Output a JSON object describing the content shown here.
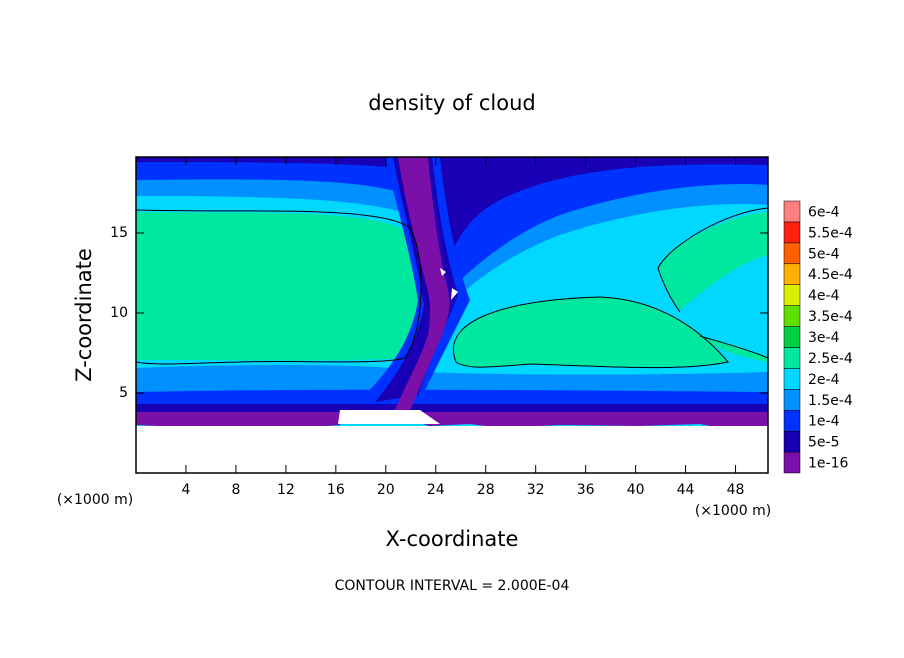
{
  "chart_data": {
    "type": "contour",
    "title": "density of cloud",
    "x_label": "X-coordinate",
    "y_label": "Z-coordinate",
    "x_unit": "(×1000 m)",
    "footer": "CONTOUR INTERVAL = 2.000E-04",
    "xlim": [
      0,
      50.6
    ],
    "ylim": [
      0,
      19.75
    ],
    "xticks": [
      4,
      8,
      12,
      16,
      20,
      24,
      28,
      32,
      36,
      40,
      44,
      48
    ],
    "yticks": [
      5,
      10,
      15
    ],
    "levels": [
      {
        "value": 1e-16,
        "label": "1e-16",
        "color": "#7a10a8"
      },
      {
        "value": 5e-05,
        "label": "5e-5",
        "color": "#1a00b4"
      },
      {
        "value": 0.0001,
        "label": "1e-4",
        "color": "#0032ff"
      },
      {
        "value": 0.00015,
        "label": "1.5e-4",
        "color": "#0090ff"
      },
      {
        "value": 0.0002,
        "label": "2e-4",
        "color": "#00d8ff"
      },
      {
        "value": 0.00025,
        "label": "2.5e-4",
        "color": "#00e8a0"
      },
      {
        "value": 0.0003,
        "label": "3e-4",
        "color": "#00d040"
      },
      {
        "value": 0.00035,
        "label": "3.5e-4",
        "color": "#60e000"
      },
      {
        "value": 0.0004,
        "label": "4e-4",
        "color": "#d8f000"
      },
      {
        "value": 0.00045,
        "label": "4.5e-4",
        "color": "#ffb000"
      },
      {
        "value": 0.0005,
        "label": "5e-4",
        "color": "#ff6000"
      },
      {
        "value": 0.00055,
        "label": "5.5e-4",
        "color": "#ff2010"
      },
      {
        "value": 0.0006,
        "label": "6e-4",
        "color": "#ff8080"
      }
    ]
  }
}
